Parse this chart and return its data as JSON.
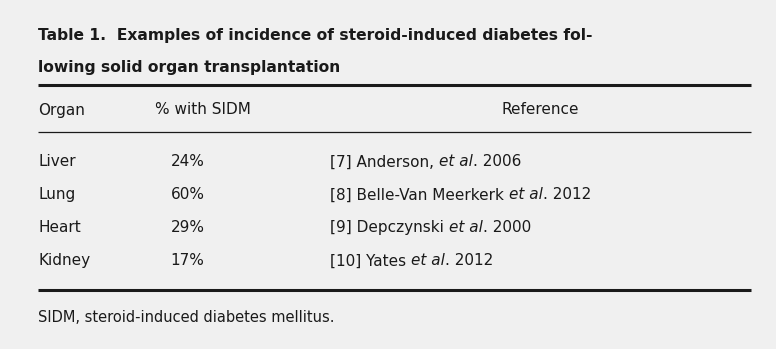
{
  "title_line1": "Table 1.  Examples of incidence of steroid-induced diabetes fol-",
  "title_line2": "lowing solid organ transplantation",
  "col_headers": [
    "Organ",
    "% with SIDM",
    "Reference"
  ],
  "rows": [
    [
      "Liver",
      "24%",
      "[7] Anderson, ",
      "et al",
      ". 2006"
    ],
    [
      "Lung",
      "60%",
      "[8] Belle-Van Meerkerk ",
      "et al",
      ". 2012"
    ],
    [
      "Heart",
      "29%",
      "[9] Depczynski ",
      "et al",
      ". 2000"
    ],
    [
      "Kidney",
      "17%",
      "[10] Yates ",
      "et al",
      ". 2012"
    ]
  ],
  "footnote": "SIDM, steroid-induced diabetes mellitus.",
  "bg_color": "#f0f0f0",
  "text_color": "#1a1a1a",
  "title_fontsize": 11.2,
  "header_fontsize": 11,
  "body_fontsize": 11,
  "footnote_fontsize": 10.5
}
